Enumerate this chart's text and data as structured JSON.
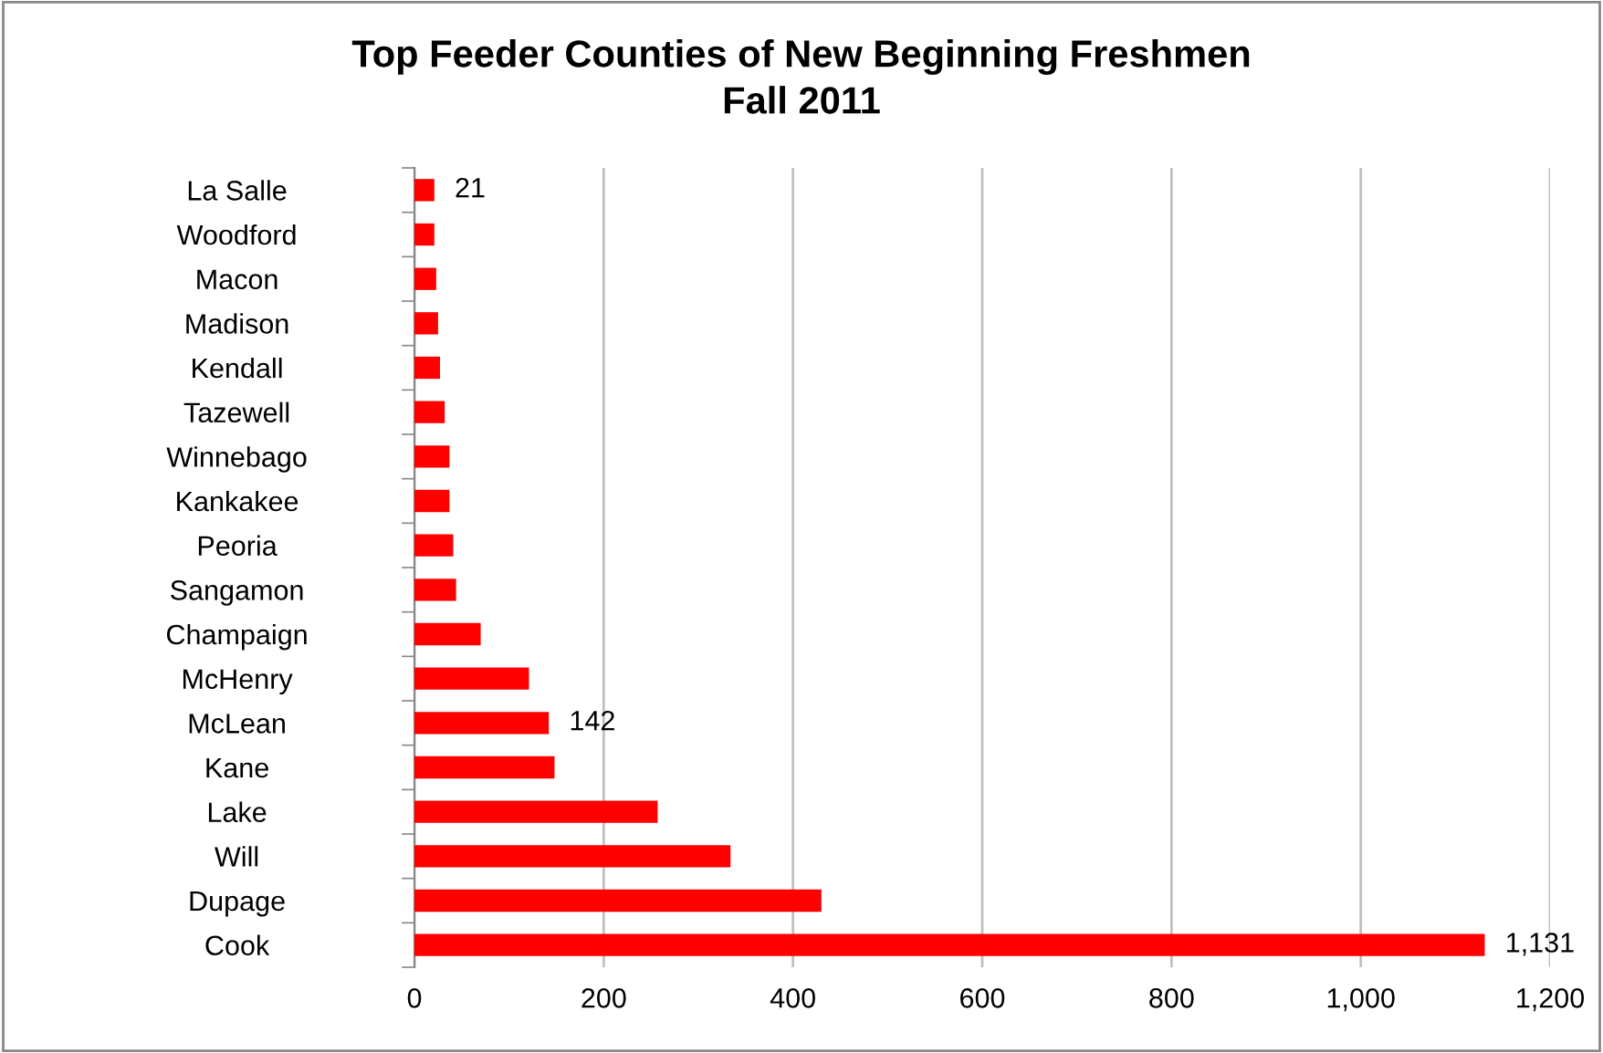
{
  "chart_data": {
    "type": "bar",
    "orientation": "horizontal",
    "title": "Top Feeder Counties of New Beginning Freshmen\nFall 2011",
    "categories": [
      "La Salle",
      "Woodford",
      "Macon",
      "Madison",
      "Kendall",
      "Tazewell",
      "Winnebago",
      "Kankakee",
      "Peoria",
      "Sangamon",
      "Champaign",
      "McHenry",
      "McLean",
      "Kane",
      "Lake",
      "Will",
      "Dupage",
      "Cook"
    ],
    "values": [
      21,
      21,
      23,
      25,
      27,
      32,
      37,
      37,
      41,
      44,
      70,
      121,
      142,
      148,
      257,
      334,
      430,
      1131
    ],
    "value_labels": [
      "21",
      null,
      null,
      null,
      null,
      null,
      null,
      null,
      null,
      null,
      null,
      null,
      "142",
      null,
      null,
      null,
      null,
      "1,131"
    ],
    "color": "#ff0000",
    "xlim": [
      0,
      1200
    ],
    "xticks": [
      0,
      200,
      400,
      600,
      800,
      {
        "value": 1000,
        "label": "1,000"
      },
      {
        "value": 1200,
        "label": "1,200"
      }
    ],
    "grid": "x"
  }
}
